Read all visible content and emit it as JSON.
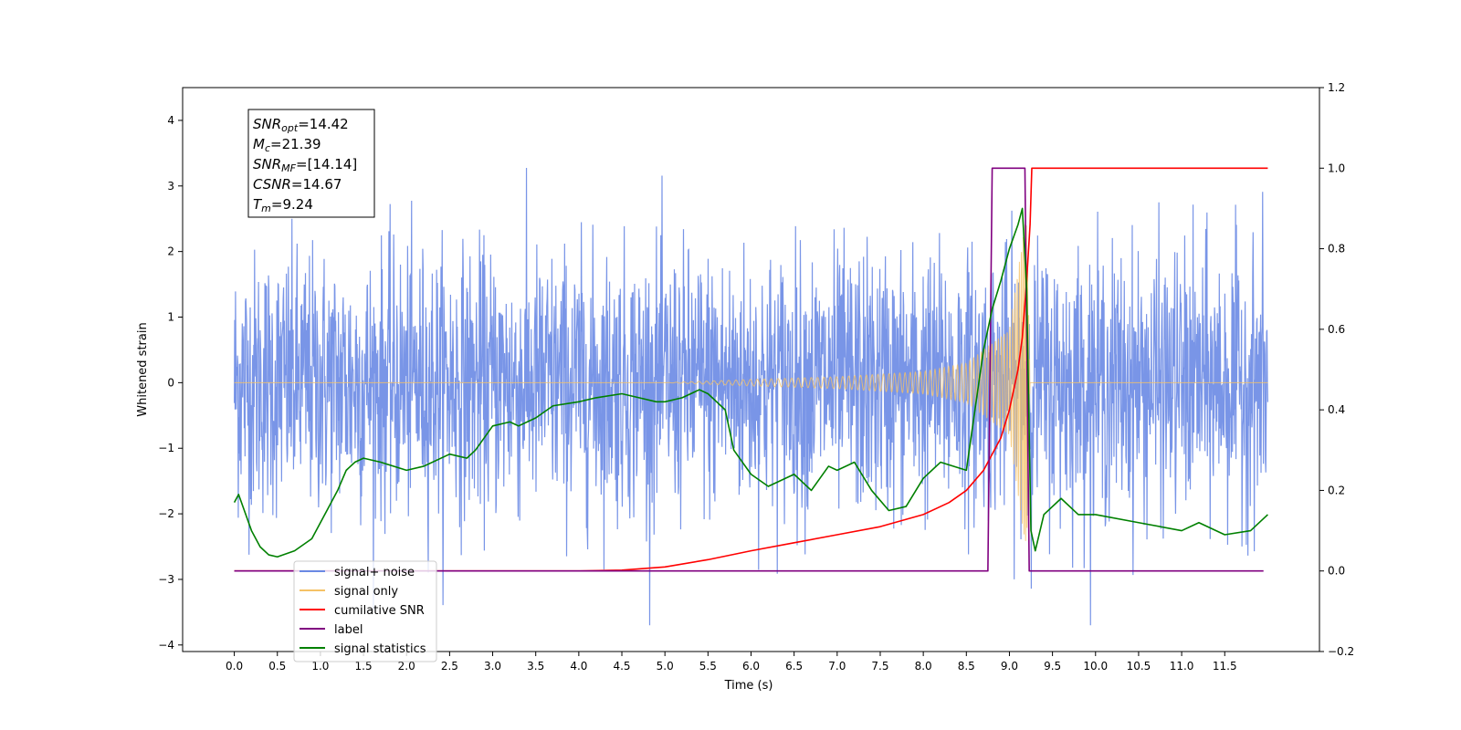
{
  "chart_data": {
    "type": "line",
    "xlabel": "Time (s)",
    "ylabel": "Whitened strain",
    "xlim": [
      -0.6,
      12.6
    ],
    "ylim": [
      -4.1,
      4.5
    ],
    "y2lim": [
      -0.2,
      1.2
    ],
    "x_ticks": [
      "0.0",
      "0.5",
      "1.0",
      "1.5",
      "2.0",
      "2.5",
      "3.0",
      "3.5",
      "4.0",
      "4.5",
      "5.0",
      "5.5",
      "6.0",
      "6.5",
      "7.0",
      "7.5",
      "8.0",
      "8.5",
      "9.0",
      "9.5",
      "10.0",
      "10.5",
      "11.0",
      "11.5"
    ],
    "y_ticks": [
      "−4",
      "−3",
      "−2",
      "−1",
      "0",
      "1",
      "2",
      "3",
      "4"
    ],
    "y2_ticks": [
      "−0.2",
      "0.0",
      "0.2",
      "0.4",
      "0.6",
      "0.8",
      "1.0",
      "1.2"
    ],
    "info_box": {
      "lines": [
        {
          "sym": "SNR",
          "sub": "opt",
          "value": "=14.42"
        },
        {
          "sym": "M",
          "sub": "c",
          "value": "=21.39"
        },
        {
          "sym": "SNR",
          "sub": "MF",
          "value": "=[14.14]"
        },
        {
          "sym": "CSNR",
          "sub": "",
          "value": "=14.67"
        },
        {
          "sym": "T",
          "sub": "m",
          "value": "=9.24"
        }
      ]
    },
    "legend": {
      "placement": "lower-left",
      "entries": [
        {
          "label": "signal+ noise",
          "color": "#6a89e4"
        },
        {
          "label": "signal only",
          "color": "#f5c266"
        },
        {
          "label": "cumilative SNR",
          "color": "#ff0000"
        },
        {
          "label": "label",
          "color": "#800080"
        },
        {
          "label": "signal statistics",
          "color": "#008000"
        }
      ]
    },
    "series": [
      {
        "name": "signal+ noise",
        "axis": "left",
        "color": "#6a89e4",
        "style": "noise",
        "x_range": [
          0.0,
          12.0
        ],
        "sigma": 1.0
      },
      {
        "name": "signal only",
        "axis": "left",
        "color": "#f5c266",
        "style": "chirp",
        "x_range": [
          0.0,
          12.0
        ],
        "merger_time": 9.24,
        "envelope": [
          [
            5.0,
            0.0
          ],
          [
            6.0,
            0.05
          ],
          [
            7.0,
            0.09
          ],
          [
            8.0,
            0.17
          ],
          [
            8.5,
            0.3
          ],
          [
            9.0,
            0.8
          ],
          [
            9.2,
            2.6
          ],
          [
            9.24,
            0.0
          ]
        ]
      },
      {
        "name": "cumilative SNR",
        "axis": "right",
        "color": "#ff0000",
        "x": [
          0.0,
          4.0,
          4.5,
          5.0,
          5.5,
          6.0,
          6.5,
          7.0,
          7.5,
          8.0,
          8.3,
          8.5,
          8.7,
          8.9,
          9.0,
          9.1,
          9.15,
          9.2,
          9.24,
          9.26,
          12.0
        ],
        "values": [
          0.0,
          0.0,
          0.002,
          0.01,
          0.028,
          0.05,
          0.07,
          0.09,
          0.11,
          0.14,
          0.17,
          0.2,
          0.25,
          0.33,
          0.4,
          0.5,
          0.58,
          0.72,
          0.86,
          1.0,
          1.0
        ]
      },
      {
        "name": "label",
        "axis": "right",
        "color": "#800080",
        "x": [
          0.0,
          8.75,
          8.8,
          9.18,
          9.23,
          11.95
        ],
        "values": [
          0.0,
          0.0,
          1.0,
          1.0,
          0.0,
          0.0
        ]
      },
      {
        "name": "signal statistics",
        "axis": "right",
        "color": "#008000",
        "x": [
          0.0,
          0.05,
          0.1,
          0.2,
          0.3,
          0.4,
          0.5,
          0.7,
          0.9,
          1.0,
          1.1,
          1.2,
          1.3,
          1.4,
          1.5,
          1.7,
          2.0,
          2.2,
          2.5,
          2.7,
          2.8,
          3.0,
          3.2,
          3.3,
          3.5,
          3.7,
          4.0,
          4.2,
          4.5,
          4.7,
          4.9,
          5.0,
          5.2,
          5.4,
          5.5,
          5.7,
          5.8,
          6.0,
          6.2,
          6.5,
          6.7,
          6.9,
          7.0,
          7.2,
          7.4,
          7.6,
          7.8,
          8.0,
          8.2,
          8.5,
          8.6,
          8.7,
          8.8,
          8.9,
          9.0,
          9.1,
          9.15,
          9.2,
          9.25,
          9.3,
          9.4,
          9.6,
          9.8,
          10.0,
          10.5,
          11.0,
          11.2,
          11.5,
          11.8,
          12.0
        ],
        "values": [
          0.17,
          0.19,
          0.16,
          0.1,
          0.06,
          0.04,
          0.035,
          0.05,
          0.08,
          0.12,
          0.16,
          0.2,
          0.25,
          0.27,
          0.28,
          0.27,
          0.25,
          0.26,
          0.29,
          0.28,
          0.3,
          0.36,
          0.37,
          0.36,
          0.38,
          0.41,
          0.42,
          0.43,
          0.44,
          0.43,
          0.42,
          0.42,
          0.43,
          0.45,
          0.44,
          0.4,
          0.3,
          0.24,
          0.21,
          0.24,
          0.2,
          0.26,
          0.25,
          0.27,
          0.2,
          0.15,
          0.16,
          0.23,
          0.27,
          0.25,
          0.4,
          0.55,
          0.65,
          0.72,
          0.8,
          0.86,
          0.9,
          0.7,
          0.1,
          0.05,
          0.14,
          0.18,
          0.14,
          0.14,
          0.12,
          0.1,
          0.12,
          0.09,
          0.1,
          0.14
        ]
      }
    ]
  }
}
